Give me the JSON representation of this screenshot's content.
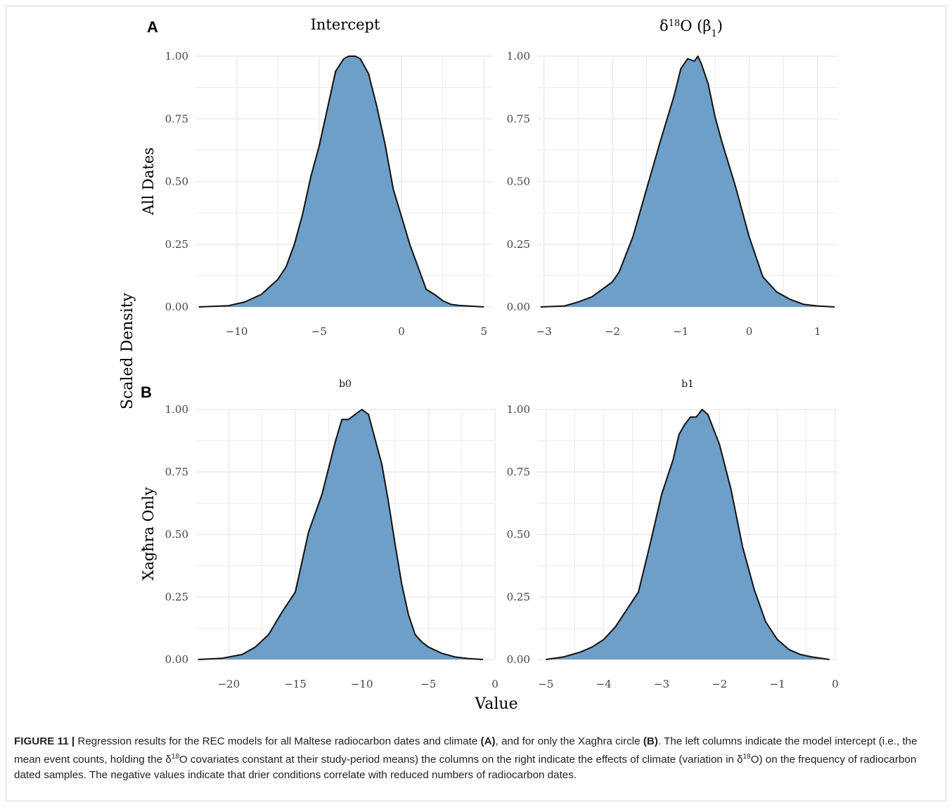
{
  "figure": {
    "y_axis_label": "Scaled Density",
    "x_axis_label": "Value",
    "panel_labels": [
      "A",
      "B"
    ],
    "row_labels": [
      "All Dates",
      "Xagħra Only"
    ],
    "column_titles_row_a": [
      "Intercept",
      "δ18O (β1)"
    ],
    "column_titles_row_b": [
      "b0",
      "b1"
    ]
  },
  "colors": {
    "fill": "#6d9fc8",
    "line": "#111111",
    "grid": "#ececec"
  },
  "chart_data": [
    {
      "type": "area",
      "panel": "A",
      "position": "top-left",
      "title": "Intercept",
      "xlim": [
        -12.5,
        5.5
      ],
      "ylim": [
        0,
        1
      ],
      "x_ticks": [
        -10,
        -5,
        0,
        5
      ],
      "x_tick_labels": [
        "−10",
        "−5",
        "0",
        "5"
      ],
      "y_ticks": [
        0,
        0.25,
        0.5,
        0.75,
        1
      ],
      "y_tick_labels": [
        "0.00",
        "0.25",
        "0.50",
        "0.75",
        "1.00"
      ],
      "grid": true,
      "x": [
        -12.3,
        -10.5,
        -9.5,
        -8.5,
        -7.5,
        -7.0,
        -6.5,
        -6.0,
        -5.5,
        -5.0,
        -4.5,
        -4.0,
        -3.5,
        -3.2,
        -2.8,
        -2.5,
        -2.0,
        -1.5,
        -1.0,
        -0.5,
        0.0,
        0.5,
        1.0,
        1.5,
        2.0,
        2.5,
        3.0,
        3.5,
        4.5,
        5.0
      ],
      "y": [
        0.0,
        0.005,
        0.02,
        0.05,
        0.11,
        0.16,
        0.25,
        0.37,
        0.52,
        0.64,
        0.79,
        0.94,
        0.99,
        1.0,
        1.0,
        0.99,
        0.93,
        0.8,
        0.65,
        0.47,
        0.36,
        0.25,
        0.16,
        0.07,
        0.05,
        0.025,
        0.01,
        0.006,
        0.002,
        0.0
      ]
    },
    {
      "type": "area",
      "panel": "A",
      "position": "top-right",
      "title": "δ18O (β1)",
      "xlim": [
        -3.1,
        1.3
      ],
      "ylim": [
        0,
        1
      ],
      "x_ticks": [
        -3,
        -2,
        -1,
        0,
        1
      ],
      "x_tick_labels": [
        "−3",
        "−2",
        "−1",
        "0",
        "1"
      ],
      "y_ticks": [
        0,
        0.25,
        0.5,
        0.75,
        1
      ],
      "y_tick_labels": [
        "0.00",
        "0.25",
        "0.50",
        "0.75",
        "1.00"
      ],
      "grid": true,
      "x": [
        -3.05,
        -2.7,
        -2.5,
        -2.3,
        -2.1,
        -2.0,
        -1.9,
        -1.7,
        -1.5,
        -1.3,
        -1.1,
        -1.0,
        -0.9,
        -0.8,
        -0.75,
        -0.7,
        -0.6,
        -0.5,
        -0.4,
        -0.2,
        0.0,
        0.2,
        0.4,
        0.6,
        0.8,
        1.0,
        1.25
      ],
      "y": [
        0.0,
        0.004,
        0.02,
        0.04,
        0.08,
        0.1,
        0.14,
        0.28,
        0.47,
        0.66,
        0.84,
        0.95,
        0.99,
        0.98,
        1.0,
        0.97,
        0.89,
        0.76,
        0.66,
        0.48,
        0.28,
        0.12,
        0.06,
        0.03,
        0.01,
        0.004,
        0.0
      ]
    },
    {
      "type": "area",
      "panel": "B",
      "position": "bottom-left",
      "title": "b0",
      "xlim": [
        -22.5,
        0
      ],
      "ylim": [
        0,
        1
      ],
      "x_ticks": [
        -20,
        -15,
        -10,
        -5,
        0
      ],
      "x_tick_labels": [
        "−20",
        "−15",
        "−10",
        "−5",
        "0"
      ],
      "y_ticks": [
        0,
        0.25,
        0.5,
        0.75,
        1
      ],
      "y_tick_labels": [
        "0.00",
        "0.25",
        "0.50",
        "0.75",
        "1.00"
      ],
      "grid": true,
      "x": [
        -22.3,
        -20.5,
        -19.0,
        -18.0,
        -17.0,
        -16.0,
        -15.0,
        -14.0,
        -13.0,
        -12.0,
        -11.5,
        -11.0,
        -10.5,
        -10.0,
        -9.5,
        -9.0,
        -8.5,
        -8.0,
        -7.5,
        -7.0,
        -6.5,
        -6.0,
        -5.5,
        -5.0,
        -4.0,
        -3.0,
        -2.0,
        -0.9
      ],
      "y": [
        0.0,
        0.005,
        0.02,
        0.05,
        0.1,
        0.19,
        0.27,
        0.51,
        0.66,
        0.87,
        0.96,
        0.96,
        0.98,
        1.0,
        0.98,
        0.88,
        0.78,
        0.63,
        0.46,
        0.3,
        0.18,
        0.1,
        0.07,
        0.05,
        0.025,
        0.01,
        0.004,
        0.0
      ]
    },
    {
      "type": "area",
      "panel": "B",
      "position": "bottom-right",
      "title": "b1",
      "xlim": [
        -5.15,
        0.05
      ],
      "ylim": [
        0,
        1
      ],
      "x_ticks": [
        -5,
        -4,
        -3,
        -2,
        -1,
        0
      ],
      "x_tick_labels": [
        "−5",
        "−4",
        "−3",
        "−2",
        "−1",
        "0"
      ],
      "y_ticks": [
        0,
        0.25,
        0.5,
        0.75,
        1
      ],
      "y_tick_labels": [
        "0.00",
        "0.25",
        "0.50",
        "0.75",
        "1.00"
      ],
      "grid": true,
      "x": [
        -5.0,
        -4.7,
        -4.4,
        -4.2,
        -4.0,
        -3.8,
        -3.6,
        -3.4,
        -3.2,
        -3.0,
        -2.8,
        -2.7,
        -2.6,
        -2.5,
        -2.4,
        -2.3,
        -2.2,
        -2.0,
        -1.8,
        -1.6,
        -1.4,
        -1.2,
        -1.0,
        -0.8,
        -0.6,
        -0.4,
        -0.1
      ],
      "y": [
        0.0,
        0.01,
        0.03,
        0.05,
        0.08,
        0.13,
        0.2,
        0.27,
        0.46,
        0.66,
        0.8,
        0.9,
        0.94,
        0.97,
        0.97,
        1.0,
        0.98,
        0.86,
        0.68,
        0.45,
        0.28,
        0.15,
        0.08,
        0.04,
        0.02,
        0.01,
        0.0
      ]
    }
  ],
  "caption": {
    "figure_label": "FIGURE 11 |",
    "text_1": " Regression results for the REC models for all Maltese radiocarbon dates and climate ",
    "ref_a": "(A)",
    "text_2": ", and for only the Xagħra circle ",
    "ref_b": "(B)",
    "text_3": ". The left columns indicate the model intercept (i.e., the mean event counts, holding the δ",
    "sup_1": "18",
    "text_4": "O covariates constant at their study-period means) the columns on the right indicate the effects of climate (variation in δ",
    "sup_2": "18",
    "text_5": "O) on the frequency of radiocarbon dated samples. The negative values indicate that drier conditions correlate with reduced numbers of radiocarbon dates."
  }
}
